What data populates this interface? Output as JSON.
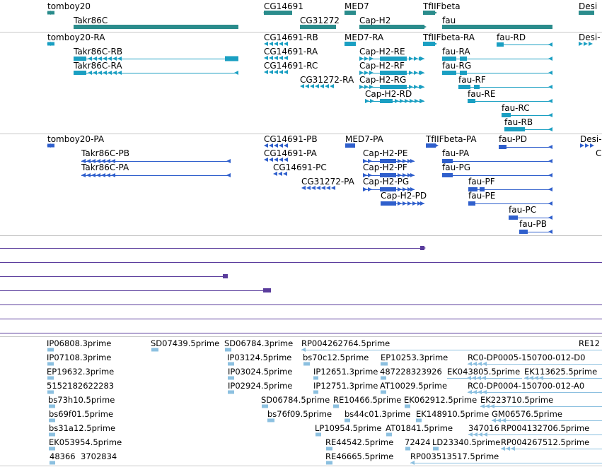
{
  "colors": {
    "gene": "#2a8c8c",
    "transcript": "#1a9fc2",
    "protein": "#2f5fcc",
    "alignment": "#5a3c9c",
    "est": "#8cc0e0",
    "separator": "#c8c8c8"
  },
  "tracks": {
    "genes": {
      "labels": [
        {
          "id": "g1",
          "text": "tomboy20"
        },
        {
          "id": "g2",
          "text": "Takr86C"
        },
        {
          "id": "g3",
          "text": "CG14691"
        },
        {
          "id": "g4",
          "text": "CG31272"
        },
        {
          "id": "g5",
          "text": "MED7"
        },
        {
          "id": "g6",
          "text": "Cap-H2"
        },
        {
          "id": "g7",
          "text": "TfIIFbeta"
        },
        {
          "id": "g8",
          "text": "fau"
        },
        {
          "id": "g9",
          "text": "Desi"
        }
      ]
    },
    "transcripts": {
      "labels": [
        {
          "id": "t1",
          "text": "tomboy20-RA"
        },
        {
          "id": "t2",
          "text": "Takr86C-RB"
        },
        {
          "id": "t3",
          "text": "Takr86C-RA"
        },
        {
          "id": "t4",
          "text": "CG14691-RB"
        },
        {
          "id": "t5",
          "text": "CG14691-RA"
        },
        {
          "id": "t6",
          "text": "CG14691-RC"
        },
        {
          "id": "t7",
          "text": "CG31272-RA"
        },
        {
          "id": "t8",
          "text": "MED7-RA"
        },
        {
          "id": "t9",
          "text": "Cap-H2-RE"
        },
        {
          "id": "t10",
          "text": "Cap-H2-RF"
        },
        {
          "id": "t11",
          "text": "Cap-H2-RG"
        },
        {
          "id": "t12",
          "text": "Cap-H2-RD"
        },
        {
          "id": "t13",
          "text": "TfIIFbeta-RA"
        },
        {
          "id": "t14",
          "text": "fau-RA"
        },
        {
          "id": "t15",
          "text": "fau-RG"
        },
        {
          "id": "t16",
          "text": "fau-RF"
        },
        {
          "id": "t17",
          "text": "fau-RE"
        },
        {
          "id": "t18",
          "text": "fau-RC"
        },
        {
          "id": "t19",
          "text": "fau-RB"
        },
        {
          "id": "t20",
          "text": "fau-RD"
        },
        {
          "id": "t21",
          "text": "Desi-"
        }
      ]
    },
    "proteins": {
      "labels": [
        {
          "id": "p1",
          "text": "tomboy20-PA"
        },
        {
          "id": "p2",
          "text": "Takr86C-PB"
        },
        {
          "id": "p3",
          "text": "Takr86C-PA"
        },
        {
          "id": "p4",
          "text": "CG14691-PB"
        },
        {
          "id": "p5",
          "text": "CG14691-PA"
        },
        {
          "id": "p6",
          "text": "CG14691-PC"
        },
        {
          "id": "p7",
          "text": "CG31272-PA"
        },
        {
          "id": "p8",
          "text": "MED7-PA"
        },
        {
          "id": "p9",
          "text": "Cap-H2-PE"
        },
        {
          "id": "p10",
          "text": "Cap-H2-PF"
        },
        {
          "id": "p11",
          "text": "Cap-H2-PG"
        },
        {
          "id": "p12",
          "text": "Cap-H2-PD"
        },
        {
          "id": "p13",
          "text": "TfIIFbeta-PA"
        },
        {
          "id": "p14",
          "text": "fau-PA"
        },
        {
          "id": "p15",
          "text": "fau-PG"
        },
        {
          "id": "p16",
          "text": "fau-PF"
        },
        {
          "id": "p17",
          "text": "fau-PE"
        },
        {
          "id": "p18",
          "text": "fau-PC"
        },
        {
          "id": "p19",
          "text": "fau-PB"
        },
        {
          "id": "p20",
          "text": "fau-PD"
        },
        {
          "id": "p21",
          "text": "Desi-"
        },
        {
          "id": "p22",
          "text": "C"
        }
      ]
    },
    "ests": {
      "labels": [
        {
          "id": "e1",
          "text": "IP06808.3prime"
        },
        {
          "id": "e2",
          "text": "SD07439.5prime"
        },
        {
          "id": "e3",
          "text": "SD06784.3prime"
        },
        {
          "id": "e4",
          "text": "RP004262764.5prime"
        },
        {
          "id": "e5",
          "text": "RE12"
        },
        {
          "id": "e6",
          "text": "IP07108.3prime"
        },
        {
          "id": "e7",
          "text": "IP03124.5prime"
        },
        {
          "id": "e8",
          "text": "bs70c12.5prime"
        },
        {
          "id": "e9",
          "text": "EP10253.3prime"
        },
        {
          "id": "e10",
          "text": "RC0-DP0005-150700-012-D0"
        },
        {
          "id": "e11",
          "text": "EP19632.3prime"
        },
        {
          "id": "e12",
          "text": "IP03024.5prime"
        },
        {
          "id": "e13",
          "text": "IP12651.3prime"
        },
        {
          "id": "e14",
          "text": "487228323926"
        },
        {
          "id": "e15",
          "text": "EK043805.5prime"
        },
        {
          "id": "e16",
          "text": "EK113625.5prime"
        },
        {
          "id": "e17",
          "text": "5152182622283"
        },
        {
          "id": "e18",
          "text": "IP02924.5prime"
        },
        {
          "id": "e19",
          "text": "IP12751.3prime"
        },
        {
          "id": "e20",
          "text": "AT10029.5prime"
        },
        {
          "id": "e21",
          "text": "RC0-DP0004-150700-012-A0"
        },
        {
          "id": "e22",
          "text": "bs73h10.5prime"
        },
        {
          "id": "e23",
          "text": "SD06784.5prime"
        },
        {
          "id": "e24",
          "text": "RE10466.5prime"
        },
        {
          "id": "e25",
          "text": "EK062912.5prime"
        },
        {
          "id": "e26",
          "text": "EK223710.5prime"
        },
        {
          "id": "e27",
          "text": "bs69f01.5prime"
        },
        {
          "id": "e28",
          "text": "bs76f09.5prime"
        },
        {
          "id": "e29",
          "text": "bs44c01.3prime"
        },
        {
          "id": "e30",
          "text": "EK148910.5prime"
        },
        {
          "id": "e31",
          "text": "GM06576.5prime"
        },
        {
          "id": "e32",
          "text": "bs31a12.5prime"
        },
        {
          "id": "e33",
          "text": "LP10954.5prime"
        },
        {
          "id": "e34",
          "text": "AT01841.5prime"
        },
        {
          "id": "e35",
          "text": "347016"
        },
        {
          "id": "e36",
          "text": "RP004132706.5prime"
        },
        {
          "id": "e37",
          "text": "EK053954.5prime"
        },
        {
          "id": "e38",
          "text": "RE44542.5prime"
        },
        {
          "id": "e39",
          "text": "72424"
        },
        {
          "id": "e40",
          "text": "LD23340.5prime"
        },
        {
          "id": "e41",
          "text": "RP004267512.5prime"
        },
        {
          "id": "e42",
          "text": "48366"
        },
        {
          "id": "e43",
          "text": "3702834"
        },
        {
          "id": "e44",
          "text": "RE46665.5prime"
        },
        {
          "id": "e45",
          "text": "RP003513517.5prime"
        }
      ]
    }
  }
}
